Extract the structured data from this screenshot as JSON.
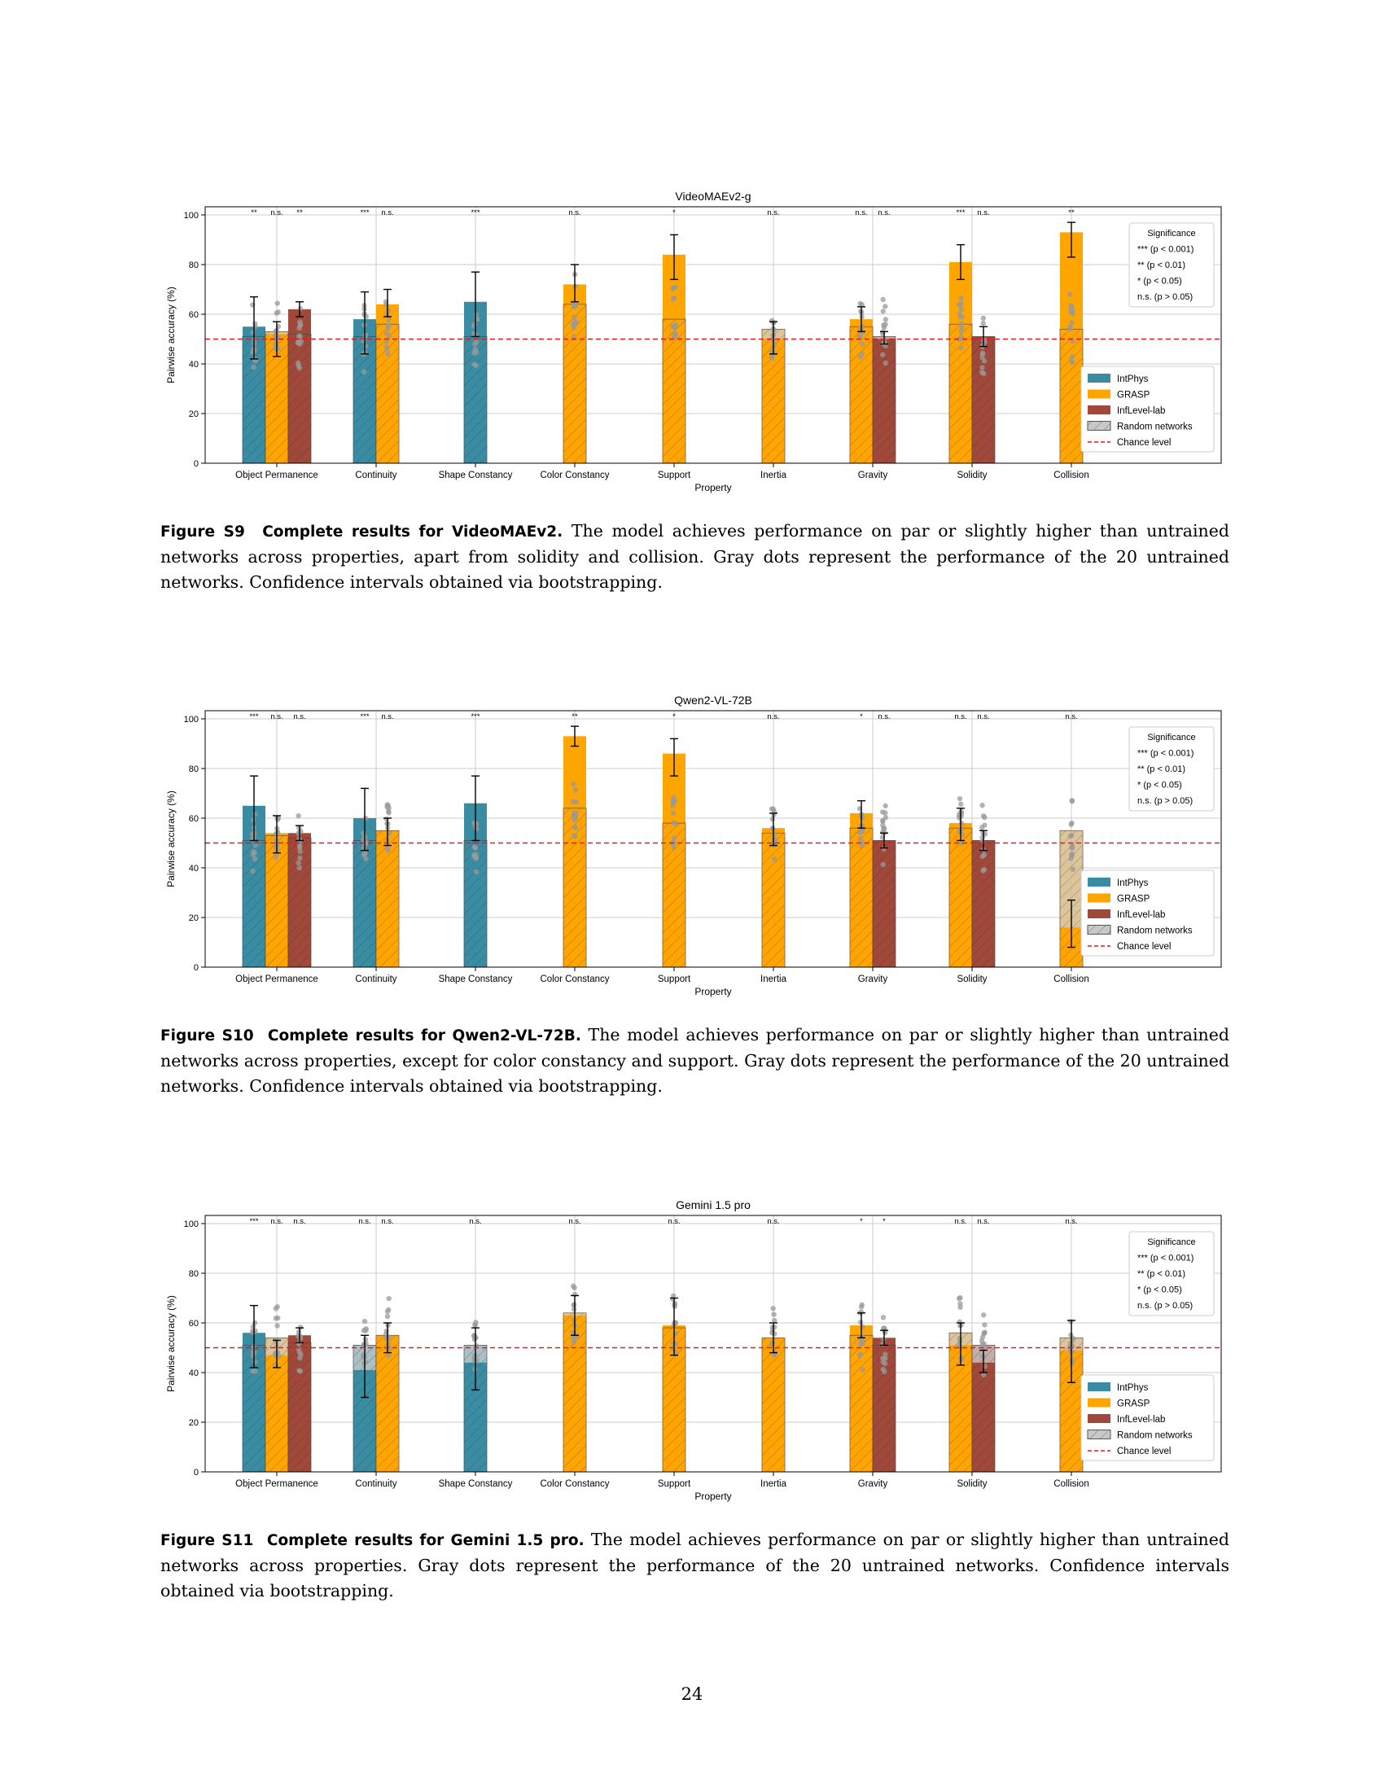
{
  "figures": [
    {
      "label": "Figure S9",
      "title": "Complete results for VideoMAEv2.",
      "text": "The model achieves performance on par or slightly higher than untrained networks across properties, apart from solidity and collision. Gray dots represent the performance of the 20 untrained networks. Confidence intervals obtained via bootstrapping."
    },
    {
      "label": "Figure S10",
      "title": "Complete results for Qwen2-VL-72B.",
      "text": "The model achieves performance on par or slightly higher than untrained networks across properties, except for color constancy and support. Gray dots represent the performance of the 20 untrained networks. Confidence intervals obtained via bootstrapping."
    },
    {
      "label": "Figure S11",
      "title": "Complete results for Gemini 1.5 pro.",
      "text": "The model achieves performance on par or slightly higher than untrained networks across properties. Gray dots represent the performance of the 20 untrained networks. Confidence intervals obtained via bootstrapping."
    }
  ],
  "page_number": "24",
  "colors": {
    "IntPhys": "#3a8ca3",
    "GRASP": "#ffa500",
    "InfLevel-lab": "#a0493a",
    "Random networks": "#c8c8c8",
    "Chance level": "#e41a1c",
    "dots": "#9a9a9a"
  },
  "chart_data": [
    {
      "type": "bar",
      "title": "VideoMAEv2-g",
      "xlabel": "Property",
      "ylabel": "Pairwise accuracy (%)",
      "ylim": [
        0,
        100
      ],
      "yticks": [
        "0",
        "20",
        "40",
        "60",
        "80",
        "100"
      ],
      "grid": true,
      "chance_level": 50,
      "categories": [
        "Object Permanence",
        "Continuity",
        "Shape Constancy",
        "Color Constancy",
        "Support",
        "Inertia",
        "Gravity",
        "Solidity",
        "Collision"
      ],
      "legend": {
        "position": "right",
        "entries": [
          "IntPhys",
          "GRASP",
          "InfLevel-lab",
          "Random networks",
          "Chance level"
        ]
      },
      "significance_legend": [
        "Significance",
        "*** (p < 0.001)",
        "** (p < 0.01)",
        "* (p < 0.05)",
        "n.s. (p > 0.05)"
      ],
      "bars": [
        {
          "category": "Object Permanence",
          "dataset": "IntPhys",
          "value": 55,
          "random": 51,
          "ci": [
            42,
            67
          ],
          "sig": "**"
        },
        {
          "category": "Object Permanence",
          "dataset": "GRASP",
          "value": 52,
          "random": 53,
          "ci": [
            43,
            57
          ],
          "sig": "n.s."
        },
        {
          "category": "Object Permanence",
          "dataset": "InfLevel-lab",
          "value": 62,
          "random": 52,
          "ci": [
            59,
            65
          ],
          "sig": "**"
        },
        {
          "category": "Continuity",
          "dataset": "IntPhys",
          "value": 58,
          "random": 51,
          "ci": [
            44,
            69
          ],
          "sig": "***"
        },
        {
          "category": "Continuity",
          "dataset": "GRASP",
          "value": 64,
          "random": 56,
          "ci": [
            59,
            70
          ],
          "sig": "n.s."
        },
        {
          "category": "Shape Constancy",
          "dataset": "IntPhys",
          "value": 65,
          "random": 51,
          "ci": [
            51,
            77
          ],
          "sig": "***"
        },
        {
          "category": "Color Constancy",
          "dataset": "GRASP",
          "value": 72,
          "random": 64,
          "ci": [
            65,
            80
          ],
          "sig": "n.s."
        },
        {
          "category": "Support",
          "dataset": "GRASP",
          "value": 84,
          "random": 58,
          "ci": [
            74,
            92
          ],
          "sig": "*"
        },
        {
          "category": "Inertia",
          "dataset": "GRASP",
          "value": 50,
          "random": 54,
          "ci": [
            44,
            57
          ],
          "sig": "n.s."
        },
        {
          "category": "Gravity",
          "dataset": "GRASP",
          "value": 58,
          "random": 55,
          "ci": [
            53,
            63
          ],
          "sig": "n.s."
        },
        {
          "category": "Gravity",
          "dataset": "InfLevel-lab",
          "value": 50,
          "random": 51,
          "ci": [
            48,
            53
          ],
          "sig": "n.s."
        },
        {
          "category": "Solidity",
          "dataset": "GRASP",
          "value": 81,
          "random": 56,
          "ci": [
            74,
            88
          ],
          "sig": "***"
        },
        {
          "category": "Solidity",
          "dataset": "InfLevel-lab",
          "value": 51,
          "random": 51,
          "ci": [
            47,
            55
          ],
          "sig": "n.s."
        },
        {
          "category": "Collision",
          "dataset": "GRASP",
          "value": 93,
          "random": 54,
          "ci": [
            83,
            97
          ],
          "sig": "**"
        }
      ]
    },
    {
      "type": "bar",
      "title": "Qwen2-VL-72B",
      "xlabel": "Property",
      "ylabel": "Pairwise accuracy (%)",
      "ylim": [
        0,
        100
      ],
      "yticks": [
        "0",
        "20",
        "40",
        "60",
        "80",
        "100"
      ],
      "grid": true,
      "chance_level": 50,
      "categories": [
        "Object Permanence",
        "Continuity",
        "Shape Constancy",
        "Color Constancy",
        "Support",
        "Inertia",
        "Gravity",
        "Solidity",
        "Collision"
      ],
      "legend": {
        "position": "right",
        "entries": [
          "IntPhys",
          "GRASP",
          "InfLevel-lab",
          "Random networks",
          "Chance level"
        ]
      },
      "significance_legend": [
        "Significance",
        "*** (p < 0.001)",
        "** (p < 0.01)",
        "* (p < 0.05)",
        "n.s. (p > 0.05)"
      ],
      "bars": [
        {
          "category": "Object Permanence",
          "dataset": "IntPhys",
          "value": 65,
          "random": 51,
          "ci": [
            51,
            77
          ],
          "sig": "***"
        },
        {
          "category": "Object Permanence",
          "dataset": "GRASP",
          "value": 54,
          "random": 53,
          "ci": [
            46,
            61
          ],
          "sig": "n.s."
        },
        {
          "category": "Object Permanence",
          "dataset": "InfLevel-lab",
          "value": 54,
          "random": 52,
          "ci": [
            51,
            57
          ],
          "sig": "n.s."
        },
        {
          "category": "Continuity",
          "dataset": "IntPhys",
          "value": 60,
          "random": 51,
          "ci": [
            47,
            72
          ],
          "sig": "***"
        },
        {
          "category": "Continuity",
          "dataset": "GRASP",
          "value": 55,
          "random": 55,
          "ci": [
            49,
            60
          ],
          "sig": "n.s."
        },
        {
          "category": "Shape Constancy",
          "dataset": "IntPhys",
          "value": 66,
          "random": 51,
          "ci": [
            51,
            77
          ],
          "sig": "***"
        },
        {
          "category": "Color Constancy",
          "dataset": "GRASP",
          "value": 93,
          "random": 64,
          "ci": [
            89,
            97
          ],
          "sig": "**"
        },
        {
          "category": "Support",
          "dataset": "GRASP",
          "value": 86,
          "random": 58,
          "ci": [
            77,
            92
          ],
          "sig": "*"
        },
        {
          "category": "Inertia",
          "dataset": "GRASP",
          "value": 56,
          "random": 54,
          "ci": [
            49,
            62
          ],
          "sig": "n.s."
        },
        {
          "category": "Gravity",
          "dataset": "GRASP",
          "value": 62,
          "random": 56,
          "ci": [
            56,
            67
          ],
          "sig": "*"
        },
        {
          "category": "Gravity",
          "dataset": "InfLevel-lab",
          "value": 51,
          "random": 51,
          "ci": [
            48,
            54
          ],
          "sig": "n.s."
        },
        {
          "category": "Solidity",
          "dataset": "GRASP",
          "value": 58,
          "random": 56,
          "ci": [
            51,
            64
          ],
          "sig": "n.s."
        },
        {
          "category": "Solidity",
          "dataset": "InfLevel-lab",
          "value": 51,
          "random": 51,
          "ci": [
            47,
            55
          ],
          "sig": "n.s."
        },
        {
          "category": "Collision",
          "dataset": "GRASP",
          "value": 16,
          "random": 55,
          "ci": [
            8,
            27
          ],
          "sig": "n.s."
        }
      ]
    },
    {
      "type": "bar",
      "title": "Gemini 1.5 pro",
      "xlabel": "Property",
      "ylabel": "Pairwise accuracy (%)",
      "ylim": [
        0,
        100
      ],
      "yticks": [
        "0",
        "20",
        "40",
        "60",
        "80",
        "100"
      ],
      "grid": true,
      "chance_level": 50,
      "categories": [
        "Object Permanence",
        "Continuity",
        "Shape Constancy",
        "Color Constancy",
        "Support",
        "Inertia",
        "Gravity",
        "Solidity",
        "Collision"
      ],
      "legend": {
        "position": "right",
        "entries": [
          "IntPhys",
          "GRASP",
          "InfLevel-lab",
          "Random networks",
          "Chance level"
        ]
      },
      "significance_legend": [
        "Significance",
        "*** (p < 0.001)",
        "** (p < 0.01)",
        "* (p < 0.05)",
        "n.s. (p > 0.05)"
      ],
      "bars": [
        {
          "category": "Object Permanence",
          "dataset": "IntPhys",
          "value": 56,
          "random": 51,
          "ci": [
            42,
            67
          ],
          "sig": "***"
        },
        {
          "category": "Object Permanence",
          "dataset": "GRASP",
          "value": 47,
          "random": 54,
          "ci": [
            42,
            53
          ],
          "sig": "n.s."
        },
        {
          "category": "Object Permanence",
          "dataset": "InfLevel-lab",
          "value": 55,
          "random": 52,
          "ci": [
            52,
            58
          ],
          "sig": "n.s."
        },
        {
          "category": "Continuity",
          "dataset": "IntPhys",
          "value": 41,
          "random": 51,
          "ci": [
            30,
            55
          ],
          "sig": "n.s."
        },
        {
          "category": "Continuity",
          "dataset": "GRASP",
          "value": 55,
          "random": 55,
          "ci": [
            48,
            60
          ],
          "sig": "n.s."
        },
        {
          "category": "Shape Constancy",
          "dataset": "IntPhys",
          "value": 44,
          "random": 51,
          "ci": [
            33,
            58
          ],
          "sig": "n.s."
        },
        {
          "category": "Color Constancy",
          "dataset": "GRASP",
          "value": 63,
          "random": 64,
          "ci": [
            55,
            71
          ],
          "sig": "n.s."
        },
        {
          "category": "Support",
          "dataset": "GRASP",
          "value": 59,
          "random": 58,
          "ci": [
            47,
            70
          ],
          "sig": "n.s."
        },
        {
          "category": "Inertia",
          "dataset": "GRASP",
          "value": 54,
          "random": 54,
          "ci": [
            48,
            60
          ],
          "sig": "n.s."
        },
        {
          "category": "Gravity",
          "dataset": "GRASP",
          "value": 59,
          "random": 55,
          "ci": [
            54,
            64
          ],
          "sig": "*"
        },
        {
          "category": "Gravity",
          "dataset": "InfLevel-lab",
          "value": 54,
          "random": 51,
          "ci": [
            51,
            57
          ],
          "sig": "*"
        },
        {
          "category": "Solidity",
          "dataset": "GRASP",
          "value": 51,
          "random": 56,
          "ci": [
            43,
            60
          ],
          "sig": "n.s."
        },
        {
          "category": "Solidity",
          "dataset": "InfLevel-lab",
          "value": 44,
          "random": 51,
          "ci": [
            40,
            49
          ],
          "sig": "n.s."
        },
        {
          "category": "Collision",
          "dataset": "GRASP",
          "value": 49,
          "random": 54,
          "ci": [
            36,
            61
          ],
          "sig": "n.s."
        }
      ]
    }
  ]
}
